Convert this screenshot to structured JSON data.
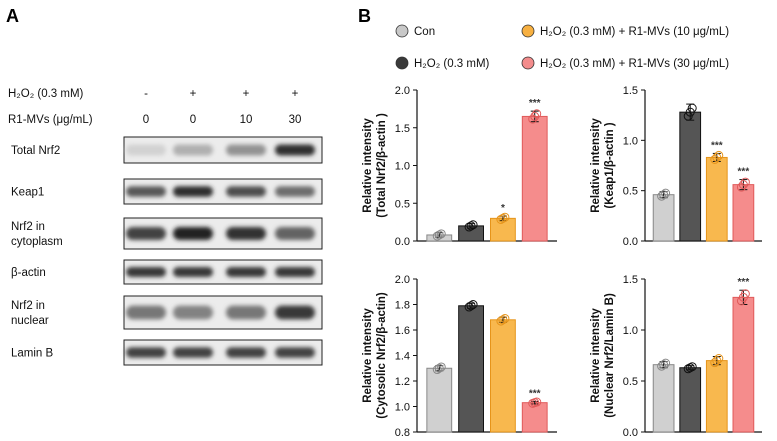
{
  "panel_a": {
    "letter": "A",
    "treatments": [
      {
        "label": "H₂O₂ (0.3 mM)",
        "values": [
          "-",
          "+",
          "+",
          "+"
        ]
      },
      {
        "label": "R1-MVs (μg/mL)",
        "values": [
          "0",
          "0",
          "10",
          "30"
        ]
      }
    ],
    "blots": [
      {
        "label": "Total Nrf2",
        "intensities": [
          0.12,
          0.28,
          0.42,
          0.9
        ]
      },
      {
        "label": "Keap1",
        "intensities": [
          0.7,
          0.9,
          0.75,
          0.6
        ]
      },
      {
        "label": "Nrf2 in\ncytoplasm",
        "intensities": [
          0.8,
          0.95,
          0.88,
          0.65
        ]
      },
      {
        "label": "β-actin",
        "intensities": [
          0.85,
          0.85,
          0.85,
          0.85
        ]
      },
      {
        "label": "Nrf2 in\nnuclear",
        "intensities": [
          0.55,
          0.5,
          0.55,
          0.85
        ]
      },
      {
        "label": "Lamin B",
        "intensities": [
          0.8,
          0.8,
          0.8,
          0.8
        ]
      }
    ]
  },
  "panel_b": {
    "letter": "B",
    "legend": [
      {
        "label": "Con",
        "color": "#c8c8c8"
      },
      {
        "label": "H₂O₂ (0.3 mM)",
        "color": "#3a3a3a"
      },
      {
        "label": "H₂O₂ (0.3 mM) + R1-MVs (10 μg/mL)",
        "color": "#f7b041"
      },
      {
        "label": "H₂O₂ (0.3 mM) + R1-MVs (30 μg/mL)",
        "color": "#f38c8c"
      }
    ],
    "bar_colors": [
      "#d0d0d0",
      "#555555",
      "#f8b84e",
      "#f58c8c"
    ],
    "edge_colors": [
      "#888888",
      "#111111",
      "#e6941a",
      "#e05a5a"
    ]
  },
  "chart_data": [
    {
      "type": "bar",
      "ylabel": [
        "Relative intensity",
        "(Total Nrf2/β-actin )"
      ],
      "ylim": [
        0.0,
        2.0
      ],
      "yticks": [
        "0.0",
        "0.5",
        "1.0",
        "1.5",
        "2.0"
      ],
      "values": [
        0.08,
        0.2,
        0.3,
        1.65
      ],
      "errors": [
        0.03,
        0.03,
        0.03,
        0.07
      ],
      "significance": [
        "",
        "",
        "*",
        "***"
      ]
    },
    {
      "type": "bar",
      "ylabel": [
        "Relative intensity",
        "(Keap1/β-actin )"
      ],
      "ylim": [
        0.0,
        1.5
      ],
      "yticks": [
        "0.0",
        "0.5",
        "1.0",
        "1.5"
      ],
      "values": [
        0.46,
        1.28,
        0.83,
        0.56
      ],
      "errors": [
        0.03,
        0.08,
        0.04,
        0.05
      ],
      "significance": [
        "",
        "",
        "***",
        "***"
      ]
    },
    {
      "type": "bar",
      "ylabel": [
        "Relative intensity",
        "(Cytosolic Nrf2/β-actin)"
      ],
      "ylim": [
        0.8,
        2.0
      ],
      "yticks": [
        "0.8",
        "1.0",
        "1.2",
        "1.4",
        "1.6",
        "1.8",
        "2.0"
      ],
      "values": [
        1.3,
        1.79,
        1.68,
        1.03
      ],
      "errors": [
        0.02,
        0.02,
        0.02,
        0.01
      ],
      "significance": [
        "",
        "",
        "",
        "***"
      ]
    },
    {
      "type": "bar",
      "ylabel": [
        "Relative intensity",
        "(Nuclear Nrf2/Lamin B)"
      ],
      "ylim": [
        0.0,
        1.5
      ],
      "yticks": [
        "0.0",
        "0.5",
        "1.0",
        "1.5"
      ],
      "values": [
        0.66,
        0.63,
        0.7,
        1.32
      ],
      "errors": [
        0.03,
        0.02,
        0.04,
        0.07
      ],
      "significance": [
        "",
        "",
        "",
        "***"
      ]
    }
  ]
}
